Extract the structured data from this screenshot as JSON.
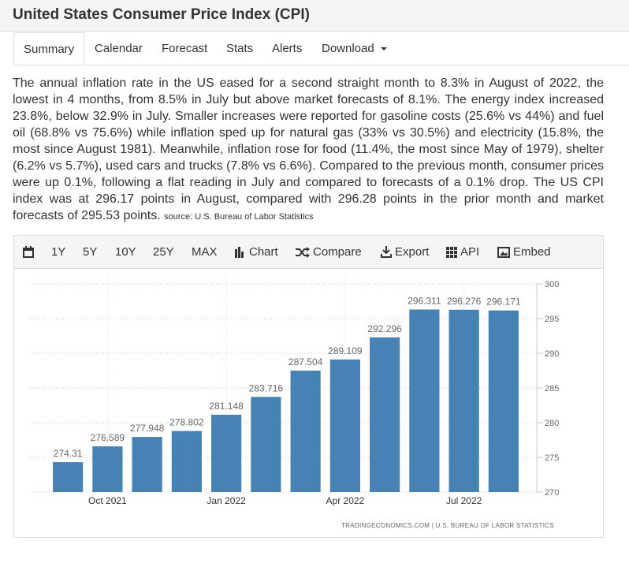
{
  "header": {
    "title": "United States Consumer Price Index (CPI)"
  },
  "tabs": [
    "Summary",
    "Calendar",
    "Forecast",
    "Stats",
    "Alerts",
    "Download"
  ],
  "summary": {
    "text": "The annual inflation rate in the US eased for a second straight month to 8.3% in August of 2022, the lowest in 4 months, from 8.5% in July but above market forecasts of 8.1%. The energy index increased 23.8%, below 32.9% in July. Smaller increases were reported for gasoline costs (25.6% vs 44%) and fuel oil (68.8% vs 75.6%) while inflation sped up for natural gas (33% vs 30.5%) and electricity (15.8%, the most since August 1981). Meanwhile, inflation rose for food (11.4%, the most since May of 1979), shelter (6.2% vs 5.7%), used cars and trucks (7.8% vs 6.6%). Compared to the previous month, consumer prices were up 0.1%, following a flat reading in July and compared to forecasts of a 0.1% drop. The US CPI index was at 296.17 points in August, compared with 296.28 points in the prior month and market forecasts of 295.53 points.",
    "source": "source: U.S. Bureau of Labor Statistics"
  },
  "toolbar": [
    "1Y",
    "5Y",
    "10Y",
    "25Y",
    "MAX",
    "Chart",
    "Compare",
    "Export",
    "API",
    "Embed"
  ],
  "chart_data": {
    "type": "bar",
    "categories": [
      null,
      "Oct 2021",
      null,
      null,
      "Jan 2022",
      null,
      null,
      "Apr 2022",
      null,
      null,
      "Jul 2022",
      null
    ],
    "values": [
      274.31,
      276.589,
      277.948,
      278.802,
      281.148,
      283.716,
      287.504,
      289.109,
      292.296,
      296.311,
      296.276,
      296.171
    ],
    "color": "#4682b4",
    "ylim": [
      270,
      300
    ],
    "yticks": [
      270,
      275,
      280,
      285,
      290,
      295,
      300
    ],
    "grid": true,
    "credit": "TRADINGECONOMICS.COM | U.S. BUREAU OF LABOR STATISTICS"
  }
}
